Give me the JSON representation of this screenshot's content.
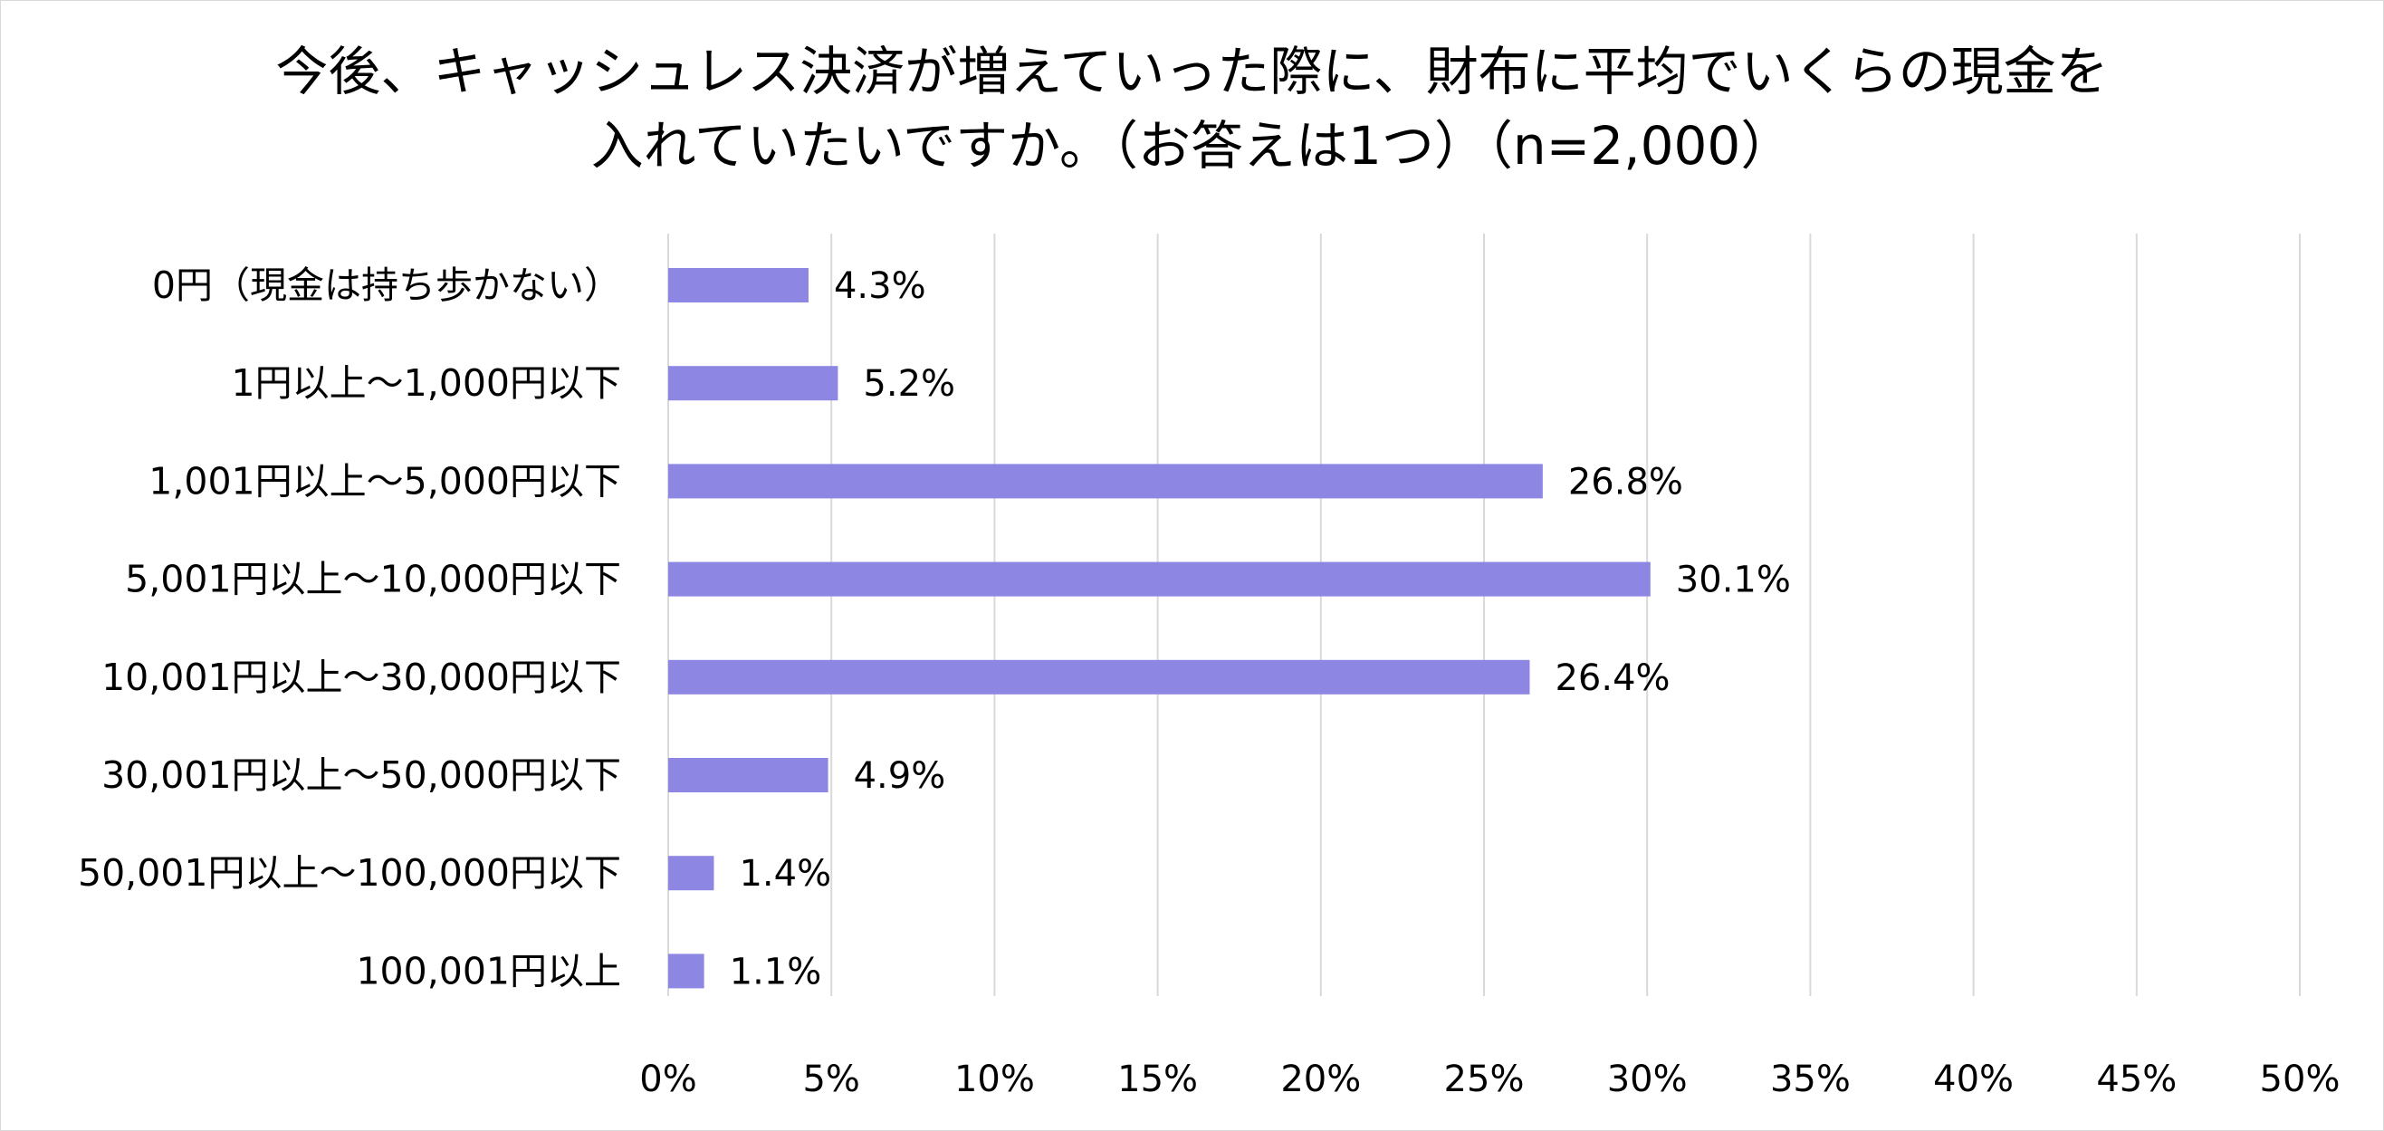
{
  "chart_data": {
    "type": "bar",
    "orientation": "horizontal",
    "title_lines": [
      "今後、キャッシュレス決済が増えていった際に、財布に平均でいくらの現金を",
      "入れていたいですか。（お答えは1つ）（n=2,000）"
    ],
    "categories": [
      "0円（現金は持ち歩かない）",
      "1円以上～1,000円以下",
      "1,001円以上～5,000円以下",
      "5,001円以上～10,000円以下",
      "10,001円以上～30,000円以下",
      "30,001円以上～50,000円以下",
      "50,001円以上～100,000円以下",
      "100,001円以上"
    ],
    "values": [
      4.3,
      5.2,
      26.8,
      30.1,
      26.4,
      4.9,
      1.4,
      1.1
    ],
    "value_labels": [
      "4.3%",
      "5.2%",
      "26.8%",
      "30.1%",
      "26.4%",
      "4.9%",
      "1.4%",
      "1.1%"
    ],
    "xlim": [
      0,
      50
    ],
    "x_ticks": [
      "0%",
      "5%",
      "10%",
      "15%",
      "20%",
      "25%",
      "30%",
      "35%",
      "40%",
      "45%",
      "50%"
    ],
    "bar_color": "#8d87e3",
    "grid": true,
    "legend": "none"
  }
}
